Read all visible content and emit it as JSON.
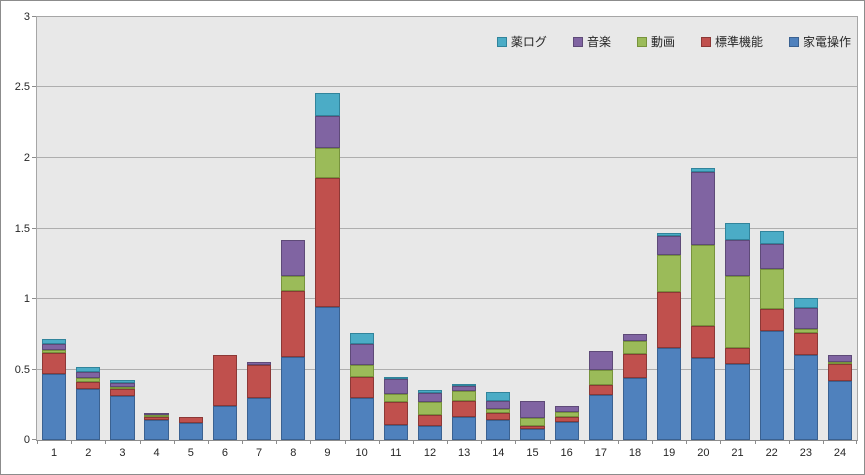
{
  "chart_data": {
    "type": "bar",
    "subtype": "stacked-vertical",
    "title": "",
    "xlabel": "",
    "ylabel": "",
    "ylim": [
      0,
      3
    ],
    "ytick_labels": [
      "0",
      "0.5",
      "1",
      "1.5",
      "2",
      "2.5",
      "3"
    ],
    "yticks": [
      0,
      0.5,
      1,
      1.5,
      2,
      2.5,
      3
    ],
    "grid": true,
    "plot_background": "#e8e8e8",
    "legend_position": "top-right-inside",
    "legend_order": [
      "薬ログ",
      "音楽",
      "動画",
      "標準機能",
      "家電操作"
    ],
    "categories": [
      "1",
      "2",
      "3",
      "4",
      "5",
      "6",
      "7",
      "8",
      "9",
      "10",
      "11",
      "12",
      "13",
      "14",
      "15",
      "16",
      "17",
      "18",
      "19",
      "20",
      "21",
      "22",
      "23",
      "24"
    ],
    "series": [
      {
        "name": "家電操作",
        "color": "#4f81bd",
        "border_color": "#3a6191",
        "values": [
          0.47,
          0.36,
          0.31,
          0.14,
          0.12,
          0.24,
          0.3,
          0.59,
          0.94,
          0.3,
          0.11,
          0.1,
          0.16,
          0.14,
          0.08,
          0.13,
          0.32,
          0.44,
          0.65,
          0.58,
          0.54,
          0.77,
          0.6,
          0.42
        ]
      },
      {
        "name": "標準機能",
        "color": "#c0504d",
        "border_color": "#8c3836",
        "values": [
          0.15,
          0.05,
          0.05,
          0.02,
          0.04,
          0.36,
          0.23,
          0.47,
          0.92,
          0.15,
          0.16,
          0.08,
          0.12,
          0.05,
          0.02,
          0.03,
          0.07,
          0.17,
          0.4,
          0.23,
          0.11,
          0.16,
          0.16,
          0.12
        ]
      },
      {
        "name": "動画",
        "color": "#9bbb59",
        "border_color": "#77933c",
        "values": [
          0.02,
          0.03,
          0.01,
          0.015,
          0,
          0,
          0,
          0.1,
          0.21,
          0.08,
          0.06,
          0.09,
          0.07,
          0.03,
          0.055,
          0.04,
          0.11,
          0.09,
          0.26,
          0.57,
          0.51,
          0.28,
          0.03,
          0.015
        ]
      },
      {
        "name": "音楽",
        "color": "#8064a2",
        "border_color": "#5e4a78",
        "values": [
          0.04,
          0.04,
          0.03,
          0.015,
          0,
          0,
          0.02,
          0.26,
          0.23,
          0.15,
          0.1,
          0.065,
          0.03,
          0.06,
          0.125,
          0.04,
          0.13,
          0.05,
          0.14,
          0.52,
          0.26,
          0.18,
          0.15,
          0.05
        ]
      },
      {
        "name": "薬ログ",
        "color": "#4bacc6",
        "border_color": "#31849b",
        "values": [
          0.04,
          0.04,
          0.02,
          0,
          0,
          0,
          0,
          0,
          0.16,
          0.08,
          0.02,
          0.02,
          0.02,
          0.06,
          0,
          0,
          0,
          0,
          0.02,
          0.03,
          0.12,
          0.09,
          0.07,
          0
        ]
      }
    ]
  }
}
